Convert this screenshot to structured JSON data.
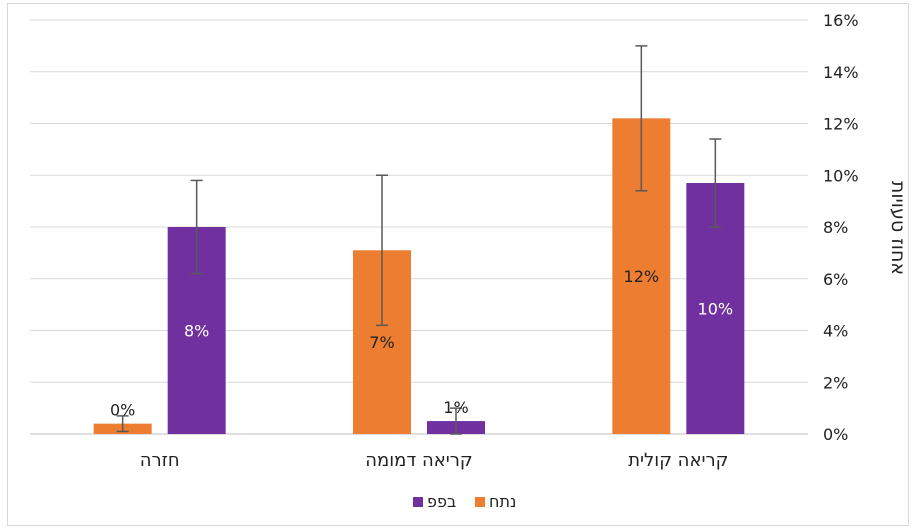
{
  "chart_data": {
    "type": "bar",
    "categories": [
      "חזרה",
      "קריאה דמומה",
      "קריאה קולית"
    ],
    "series": [
      {
        "name": "נתח",
        "color": "#ED7D31",
        "values": [
          0.004,
          0.071,
          0.122
        ],
        "labels": [
          "0%",
          "7%",
          "12%"
        ],
        "error": [
          0.003,
          0.029,
          0.028
        ]
      },
      {
        "name": "בפפ",
        "color": "#7030A0",
        "values": [
          0.08,
          0.005,
          0.097
        ],
        "labels": [
          "8%",
          "1%",
          "10%"
        ],
        "error": [
          0.018,
          0.005,
          0.017
        ]
      }
    ],
    "ylabel": "אחוז טעויות",
    "xlabel": "",
    "ylim": [
      0,
      0.16
    ],
    "yticks": [
      "0%",
      "2%",
      "4%",
      "6%",
      "8%",
      "10%",
      "12%",
      "14%",
      "16%"
    ],
    "grid": true,
    "legend_position": "bottom"
  }
}
